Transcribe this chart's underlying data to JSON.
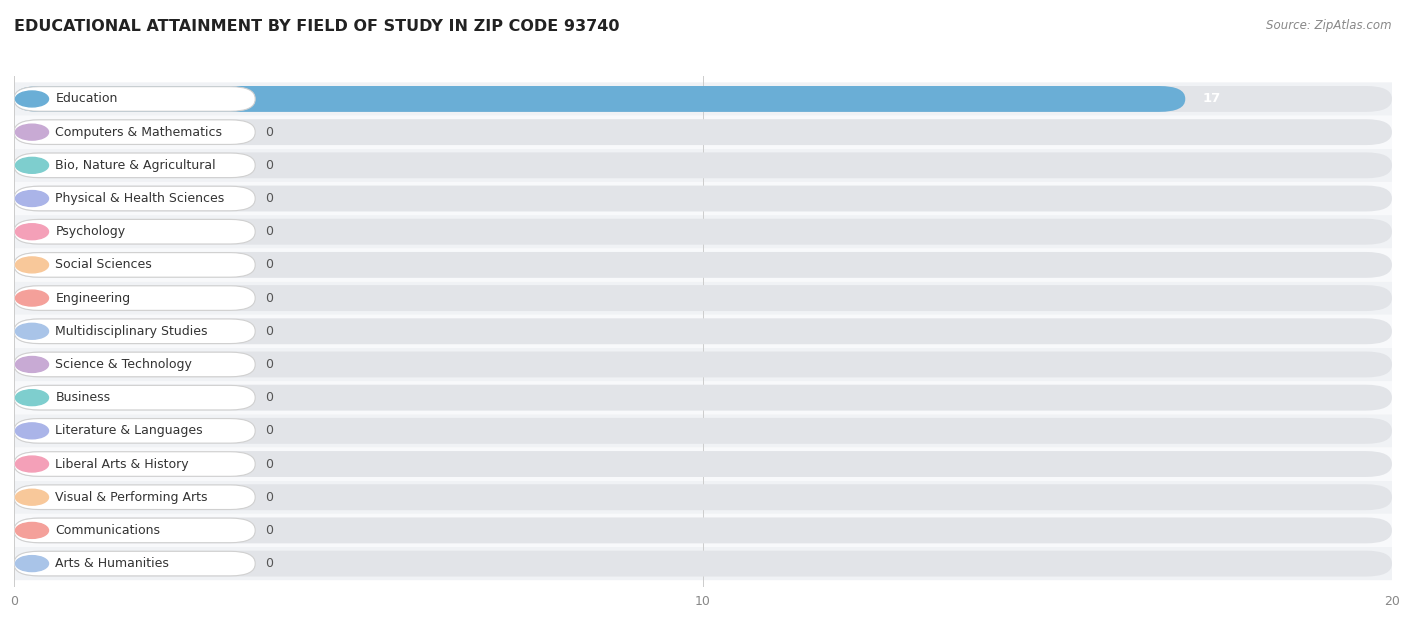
{
  "title": "EDUCATIONAL ATTAINMENT BY FIELD OF STUDY IN ZIP CODE 93740",
  "source": "Source: ZipAtlas.com",
  "categories": [
    "Education",
    "Computers & Mathematics",
    "Bio, Nature & Agricultural",
    "Physical & Health Sciences",
    "Psychology",
    "Social Sciences",
    "Engineering",
    "Multidisciplinary Studies",
    "Science & Technology",
    "Business",
    "Literature & Languages",
    "Liberal Arts & History",
    "Visual & Performing Arts",
    "Communications",
    "Arts & Humanities"
  ],
  "values": [
    17,
    0,
    0,
    0,
    0,
    0,
    0,
    0,
    0,
    0,
    0,
    0,
    0,
    0,
    0
  ],
  "bar_colors": [
    "#6aaed6",
    "#c8aad4",
    "#7ecece",
    "#aab4e8",
    "#f4a0b8",
    "#f8c89a",
    "#f4a09a",
    "#a9c4e8",
    "#c8aad4",
    "#7ecece",
    "#aab4e8",
    "#f4a0b8",
    "#f8c89a",
    "#f4a09a",
    "#a9c4e8"
  ],
  "xlim": [
    0,
    20
  ],
  "xticks": [
    0,
    10,
    20
  ],
  "bg_color": "#ffffff",
  "row_bg_even": "#f0f2f5",
  "row_bg_odd": "#f8f9fb",
  "bar_bg_color": "#e2e4e8",
  "title_fontsize": 11.5,
  "label_fontsize": 9,
  "source_fontsize": 8.5,
  "value_label_color": "#555555"
}
